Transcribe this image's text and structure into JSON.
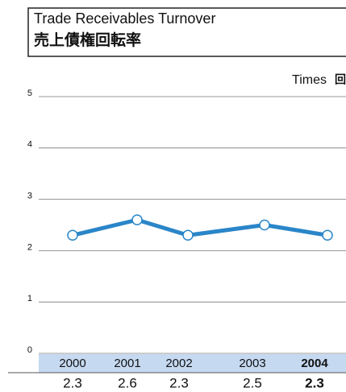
{
  "chart_data": {
    "type": "line",
    "title": "Trade Receivables Turnover",
    "subtitle": "売上債権回転率",
    "y_label": "Times",
    "y_label_ja": "回",
    "categories": [
      "2000",
      "2001",
      "2002",
      "2003",
      "2004"
    ],
    "values": [
      2.3,
      2.6,
      2.3,
      2.5,
      2.3
    ],
    "color": "#2a86c8",
    "ylim": [
      0,
      5
    ],
    "yticks": [
      0,
      1,
      2,
      3,
      4,
      5
    ],
    "grid": true
  }
}
